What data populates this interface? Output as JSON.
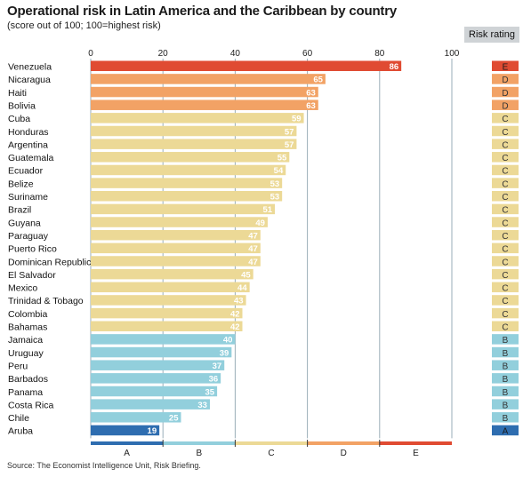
{
  "header": {
    "title": "Operational risk in Latin America and the Caribbean by country",
    "subtitle": "(score out of 100; 100=highest risk)",
    "risk_rating_label": "Risk rating"
  },
  "footer": {
    "source": "Source: The Economist Intelligence Unit, Risk Briefing."
  },
  "colors": {
    "A": "#2e6db0",
    "B": "#92cfdc",
    "C": "#ecd996",
    "D": "#f2a265",
    "E": "#e04b32",
    "grid": "#9aaeb8"
  },
  "chart_data": {
    "type": "bar",
    "orientation": "horizontal",
    "xlim": [
      0,
      100
    ],
    "xticks": [
      0,
      20,
      40,
      60,
      80,
      100
    ],
    "categories": [
      "Venezuela",
      "Nicaragua",
      "Haiti",
      "Bolivia",
      "Cuba",
      "Honduras",
      "Argentina",
      "Guatemala",
      "Ecuador",
      "Belize",
      "Suriname",
      "Brazil",
      "Guyana",
      "Paraguay",
      "Puerto Rico",
      "Dominican Republic",
      "El Salvador",
      "Mexico",
      "Trinidad & Tobago",
      "Colombia",
      "Bahamas",
      "Jamaica",
      "Uruguay",
      "Peru",
      "Barbados",
      "Panama",
      "Costa Rica",
      "Chile",
      "Aruba"
    ],
    "values": [
      86,
      65,
      63,
      63,
      59,
      57,
      57,
      55,
      54,
      53,
      53,
      51,
      49,
      47,
      47,
      47,
      45,
      44,
      43,
      42,
      42,
      40,
      39,
      37,
      36,
      35,
      33,
      25,
      19
    ],
    "ratings": [
      "E",
      "D",
      "D",
      "D",
      "C",
      "C",
      "C",
      "C",
      "C",
      "C",
      "C",
      "C",
      "C",
      "C",
      "C",
      "C",
      "C",
      "C",
      "C",
      "C",
      "C",
      "B",
      "B",
      "B",
      "B",
      "B",
      "B",
      "B",
      "A"
    ],
    "rating_bands": [
      {
        "label": "A",
        "from": 0,
        "to": 20
      },
      {
        "label": "B",
        "from": 20,
        "to": 40
      },
      {
        "label": "C",
        "from": 40,
        "to": 60
      },
      {
        "label": "D",
        "from": 60,
        "to": 80
      },
      {
        "label": "E",
        "from": 80,
        "to": 100
      }
    ]
  }
}
